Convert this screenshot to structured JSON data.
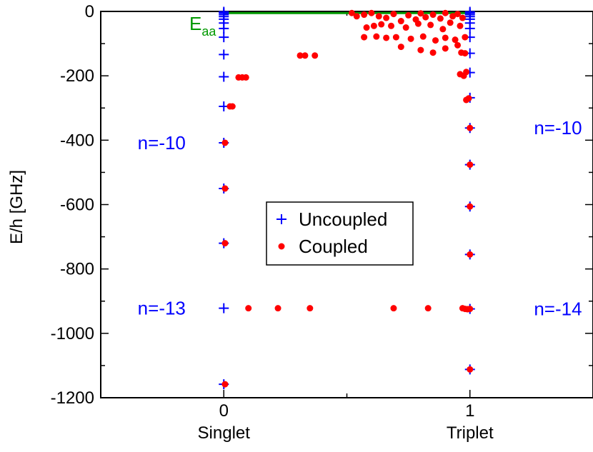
{
  "chart_data": {
    "type": "scatter",
    "title": "",
    "xlabel": "",
    "ylabel": "E/h [GHz]",
    "xlim": [
      -0.5,
      1.5
    ],
    "ylim": [
      -1200,
      0
    ],
    "x_ticks": [
      {
        "value": 0,
        "label": "0",
        "sublabel": "Singlet"
      },
      {
        "value": 1,
        "label": "1",
        "sublabel": "Triplet"
      }
    ],
    "y_ticks": [
      0,
      -200,
      -400,
      -600,
      -800,
      -1000,
      -1200
    ],
    "y_tick_labels": [
      "0",
      "-200",
      "-400",
      "-600",
      "-800",
      "-1000",
      "-1200"
    ],
    "grid": false,
    "legend_position": "center",
    "series": [
      {
        "name": "Uncoupled",
        "marker": "plus",
        "color": "#0000ff",
        "points": [
          [
            0,
            -1
          ],
          [
            0,
            -5
          ],
          [
            0,
            -10
          ],
          [
            0,
            -16
          ],
          [
            0,
            -24
          ],
          [
            0,
            -36
          ],
          [
            0,
            -53
          ],
          [
            0,
            -80
          ],
          [
            0,
            -134
          ],
          [
            0,
            -203
          ],
          [
            0,
            -295
          ],
          [
            0,
            -408
          ],
          [
            0,
            -550
          ],
          [
            0,
            -720
          ],
          [
            0,
            -922
          ],
          [
            0,
            -1158
          ],
          [
            1,
            -1
          ],
          [
            1,
            -5
          ],
          [
            1,
            -10
          ],
          [
            1,
            -16
          ],
          [
            1,
            -24
          ],
          [
            1,
            -36
          ],
          [
            1,
            -53
          ],
          [
            1,
            -80
          ],
          [
            1,
            -130
          ],
          [
            1,
            -190
          ],
          [
            1,
            -268
          ],
          [
            1,
            -362
          ],
          [
            1,
            -476
          ],
          [
            1,
            -606
          ],
          [
            1,
            -755
          ],
          [
            1,
            -924
          ],
          [
            1,
            -1112
          ]
        ]
      },
      {
        "name": "Coupled",
        "marker": "circle",
        "color": "#ff0000",
        "points": [
          [
            0.005,
            -408
          ],
          [
            0.005,
            -550
          ],
          [
            0.005,
            -720
          ],
          [
            0.005,
            -1158
          ],
          [
            0.025,
            -295
          ],
          [
            0.035,
            -295
          ],
          [
            0.1,
            -922
          ],
          [
            0.22,
            -922
          ],
          [
            0.35,
            -922
          ],
          [
            0.69,
            -922
          ],
          [
            0.83,
            -922
          ],
          [
            0.97,
            -922
          ],
          [
            0.98,
            -924
          ],
          [
            0.99,
            -925
          ],
          [
            1.0,
            -924
          ],
          [
            0.06,
            -205
          ],
          [
            0.075,
            -205
          ],
          [
            0.09,
            -205
          ],
          [
            0.31,
            -137
          ],
          [
            0.33,
            -137
          ],
          [
            0.37,
            -137
          ],
          [
            1.0,
            -1112
          ],
          [
            1.0,
            -755
          ],
          [
            1.0,
            -606
          ],
          [
            1.0,
            -476
          ],
          [
            1.0,
            -362
          ],
          [
            0.995,
            -270
          ],
          [
            0.985,
            -275
          ],
          [
            0.96,
            -195
          ],
          [
            0.975,
            -200
          ],
          [
            0.985,
            -188
          ],
          [
            0.965,
            -128
          ],
          [
            0.98,
            -130
          ],
          [
            0.52,
            -5
          ],
          [
            0.54,
            -15
          ],
          [
            0.57,
            -10
          ],
          [
            0.6,
            -5
          ],
          [
            0.63,
            -15
          ],
          [
            0.66,
            -20
          ],
          [
            0.69,
            -8
          ],
          [
            0.72,
            -30
          ],
          [
            0.75,
            -12
          ],
          [
            0.78,
            -25
          ],
          [
            0.8,
            -6
          ],
          [
            0.82,
            -18
          ],
          [
            0.85,
            -10
          ],
          [
            0.88,
            -22
          ],
          [
            0.9,
            -5
          ],
          [
            0.93,
            -15
          ],
          [
            0.95,
            -8
          ],
          [
            0.97,
            -20
          ],
          [
            0.64,
            -40
          ],
          [
            0.68,
            -45
          ],
          [
            0.74,
            -50
          ],
          [
            0.79,
            -38
          ],
          [
            0.84,
            -42
          ],
          [
            0.89,
            -55
          ],
          [
            0.92,
            -35
          ],
          [
            0.96,
            -45
          ],
          [
            0.58,
            -50
          ],
          [
            0.61,
            -45
          ],
          [
            0.57,
            -80
          ],
          [
            0.62,
            -78
          ],
          [
            0.66,
            -82
          ],
          [
            0.7,
            -80
          ],
          [
            0.76,
            -85
          ],
          [
            0.81,
            -78
          ],
          [
            0.86,
            -90
          ],
          [
            0.9,
            -82
          ],
          [
            0.94,
            -88
          ],
          [
            0.98,
            -80
          ],
          [
            0.72,
            -110
          ],
          [
            0.8,
            -120
          ],
          [
            0.85,
            -128
          ],
          [
            0.9,
            -115
          ],
          [
            0.95,
            -105
          ]
        ]
      },
      {
        "name": "",
        "marker": "line",
        "color": "#009900",
        "points": [
          [
            0,
            -5
          ],
          [
            1,
            -5
          ]
        ]
      }
    ],
    "annotations": [
      {
        "text": "E",
        "subscript": "aa",
        "x": -0.14,
        "y": -38,
        "color": "#009900"
      },
      {
        "text": "n=-10",
        "x": -0.35,
        "y": -408,
        "color": "#0000ff"
      },
      {
        "text": "n=-13",
        "x": -0.35,
        "y": -922,
        "color": "#0000ff"
      },
      {
        "text": "n=-10",
        "x": 1.26,
        "y": -362,
        "color": "#0000ff"
      },
      {
        "text": "n=-14",
        "x": 1.26,
        "y": -924,
        "color": "#0000ff"
      }
    ]
  }
}
